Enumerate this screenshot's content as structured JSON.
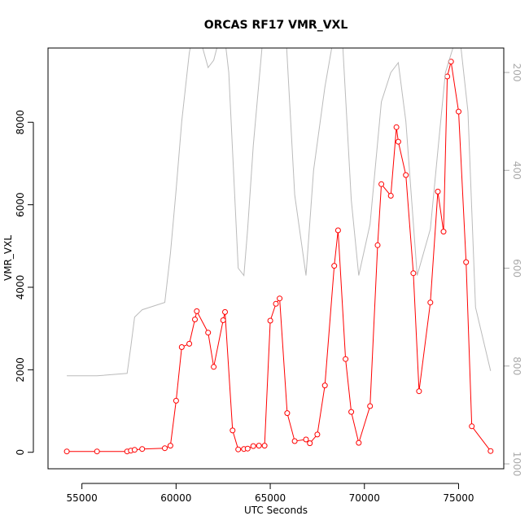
{
  "chart_data": {
    "type": "line",
    "title": "ORCAS RF17 VMR_VXL",
    "xlabel": "UTC Seconds",
    "ylabel": "VMR_VXL",
    "xlim": [
      53200,
      77400
    ],
    "ylim": [
      -400,
      9800
    ],
    "x_ticks": [
      55000,
      60000,
      65000,
      70000,
      75000
    ],
    "x_tick_labels": [
      "55000",
      "60000",
      "65000",
      "70000",
      "75000"
    ],
    "y_ticks": [
      0,
      2000,
      4000,
      6000,
      8000
    ],
    "y_tick_labels": [
      "0",
      "2000",
      "4000",
      "6000",
      "8000"
    ],
    "right_axis": {
      "lim": [
        1010,
        150
      ],
      "ticks": [
        200,
        400,
        600,
        800,
        1000
      ],
      "tick_labels": [
        "200",
        "400",
        "600",
        "800",
        "1000"
      ],
      "color": "#aaaaaa"
    },
    "series": [
      {
        "color": "#ff0000",
        "marker": "open-circle",
        "x": [
          54200,
          55800,
          57400,
          57600,
          57800,
          58200,
          59400,
          59700,
          60000,
          60300,
          60700,
          61000,
          61100,
          61700,
          62000,
          62500,
          62600,
          63000,
          63300,
          63600,
          63800,
          64100,
          64400,
          64700,
          65000,
          65300,
          65500,
          65900,
          66300,
          66900,
          67100,
          67500,
          67900,
          68400,
          68600,
          69000,
          69300,
          69700,
          70300,
          70700,
          70900,
          71400,
          71700,
          71800,
          72200,
          72600,
          72900,
          73500,
          73900,
          74200,
          74400,
          74600,
          75000,
          75400,
          75700,
          76700
        ],
        "y": [
          20,
          20,
          20,
          40,
          60,
          80,
          100,
          160,
          1250,
          2550,
          2630,
          3220,
          3420,
          2900,
          2070,
          3200,
          3400,
          530,
          70,
          80,
          90,
          150,
          160,
          160,
          3190,
          3600,
          3730,
          950,
          270,
          310,
          220,
          430,
          1620,
          4520,
          5380,
          2260,
          980,
          230,
          1120,
          5020,
          6500,
          6220,
          7880,
          7530,
          6720,
          4340,
          1480,
          3630,
          6320,
          5350,
          9110,
          9470,
          8260,
          4610,
          630,
          30
        ]
      },
      {
        "color": "#bbbbbb",
        "axis": "right",
        "x": [
          54200,
          55800,
          57400,
          57600,
          57800,
          58200,
          59400,
          59700,
          60000,
          60300,
          60700,
          61000,
          61200,
          61700,
          62000,
          62500,
          62800,
          63300,
          63600,
          63800,
          64100,
          64700,
          65000,
          65400,
          65800,
          66300,
          66900,
          67300,
          67900,
          68400,
          68800,
          69300,
          69700,
          70300,
          70900,
          71400,
          71800,
          72200,
          72800,
          73500,
          73900,
          74300,
          74700,
          75100,
          75500,
          75900,
          76700
        ],
        "y": [
          820,
          820,
          815,
          760,
          700,
          685,
          670,
          570,
          440,
          300,
          160,
          100,
          120,
          190,
          175,
          100,
          200,
          600,
          615,
          520,
          350,
          90,
          60,
          60,
          100,
          450,
          615,
          400,
          230,
          120,
          110,
          460,
          615,
          510,
          260,
          200,
          180,
          300,
          615,
          520,
          360,
          200,
          150,
          140,
          280,
          680,
          810
        ]
      }
    ]
  }
}
